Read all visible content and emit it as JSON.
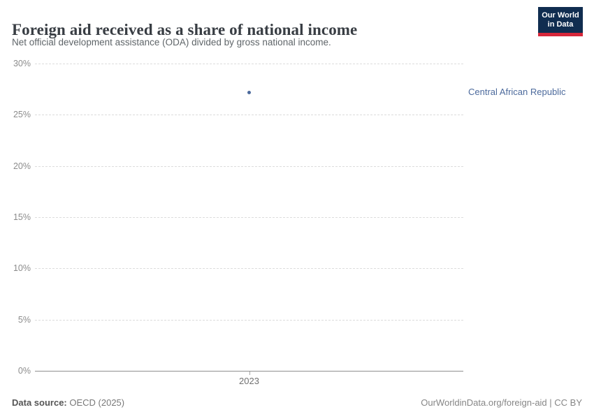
{
  "header": {
    "title": "Foreign aid received as a share of national income",
    "subtitle": "Net official development assistance (ODA) divided by gross national income."
  },
  "logo": {
    "line1": "Our World",
    "line2": "in Data"
  },
  "chart_data": {
    "type": "scatter",
    "title": "Foreign aid received as a share of national income",
    "xlabel": "",
    "ylabel": "",
    "ylim": [
      0,
      30
    ],
    "yticks": [
      0,
      5,
      10,
      15,
      20,
      25,
      30
    ],
    "ytick_suffix": "%",
    "xticks": [
      2023
    ],
    "grid": "dashed-horizontal",
    "legend_position": "label-right-of-plot",
    "series": [
      {
        "name": "Central African Republic",
        "color": "#4c6a9c",
        "x": [
          2023
        ],
        "values": [
          27.2
        ]
      }
    ]
  },
  "footer": {
    "source_label": "Data source:",
    "source_value": " OECD (2025)",
    "attribution": "OurWorldinData.org/foreign-aid | CC BY"
  },
  "colors": {
    "accent_blue": "#4c6a9c",
    "logo_navy": "#102d50",
    "logo_red": "#d6273a",
    "gridline": "#dcdcdc",
    "axis": "#8f8f8f"
  }
}
